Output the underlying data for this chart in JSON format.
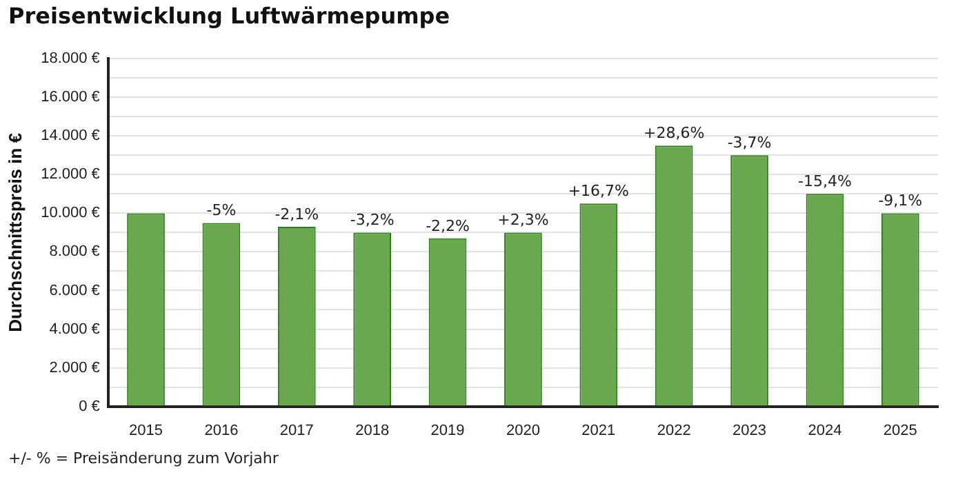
{
  "chart_data": {
    "type": "bar",
    "title": "Preisentwicklung Luftwärmepumpe",
    "ylabel": "Durchschnittspreis in €",
    "categories": [
      "2015",
      "2016",
      "2017",
      "2018",
      "2019",
      "2020",
      "2021",
      "2022",
      "2023",
      "2024",
      "2025"
    ],
    "values": [
      10000,
      9500,
      9300,
      9000,
      8700,
      9000,
      10500,
      13500,
      13000,
      11000,
      10000
    ],
    "color": "#6aa84f",
    "ylim": [
      0,
      18000
    ],
    "yticks": [
      {
        "value": 0,
        "label": "0 €"
      },
      {
        "value": 1000,
        "label": null
      },
      {
        "value": 2000,
        "label": "2.000 €"
      },
      {
        "value": 3000,
        "label": null
      },
      {
        "value": 4000,
        "label": "4.000 €"
      },
      {
        "value": 5000,
        "label": null
      },
      {
        "value": 6000,
        "label": "6.000 €"
      },
      {
        "value": 7000,
        "label": null
      },
      {
        "value": 8000,
        "label": "8.000 €"
      },
      {
        "value": 9000,
        "label": null
      },
      {
        "value": 10000,
        "label": "10.000 €"
      },
      {
        "value": 11000,
        "label": null
      },
      {
        "value": 12000,
        "label": "12.000 €"
      },
      {
        "value": 13000,
        "label": null
      },
      {
        "value": 14000,
        "label": "14.000 €"
      },
      {
        "value": 15000,
        "label": null
      },
      {
        "value": 16000,
        "label": "16.000 €"
      },
      {
        "value": 17000,
        "label": null
      },
      {
        "value": 18000,
        "label": "18.000 €"
      }
    ],
    "grid": "y",
    "legend": false,
    "annotations": [
      {
        "text": "-5%",
        "x": "2016",
        "y": 9500
      },
      {
        "text": "-2,1%",
        "x": "2017",
        "y": 9300
      },
      {
        "text": "-3,2%",
        "x": "2018",
        "y": 9000
      },
      {
        "text": "-2,2%",
        "x": "2019",
        "y": 8700
      },
      {
        "text": "+2,3%",
        "x": "2020",
        "y": 9000
      },
      {
        "text": "+16,7%",
        "x": "2021",
        "y": 10500
      },
      {
        "text": "+28,6%",
        "x": "2022",
        "y": 13500
      },
      {
        "text": "-3,7%",
        "x": "2023",
        "y": 13000
      },
      {
        "text": "-15,4%",
        "x": "2024",
        "y": 11000
      },
      {
        "text": "-9,1%",
        "x": "2025",
        "y": 10000
      },
      "+/- %  = Preisänderung zum Vorjahr"
    ]
  }
}
